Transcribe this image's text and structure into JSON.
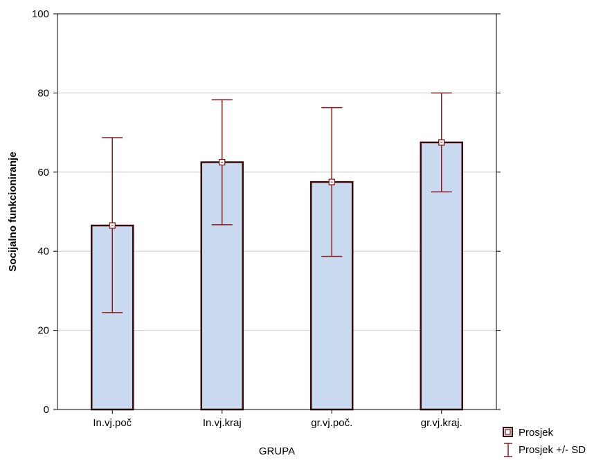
{
  "chart_data": {
    "type": "bar",
    "categories": [
      "In.vj.poč",
      "In.vj.kraj",
      "gr.vj.poč.",
      "gr.vj.kraj."
    ],
    "series": [
      {
        "values": [
          46.5,
          62.5,
          57.5,
          67.5
        ]
      }
    ],
    "error_bars": {
      "lower": [
        24.5,
        46.7,
        38.7,
        55.0
      ],
      "upper": [
        68.7,
        78.3,
        76.3,
        80.0
      ]
    },
    "xlabel": "GRUPA",
    "ylabel": "Socijalno funkcioniranje",
    "ylim": [
      0,
      100
    ],
    "yticks": [
      0,
      20,
      40,
      60,
      80,
      100
    ],
    "yticks_labels": [
      "0",
      "20",
      "40",
      "60",
      "80",
      "100"
    ],
    "grid": true,
    "legend": {
      "placement": "bottom-right",
      "entries": [
        "Prosjek",
        "Prosjek +/- SD"
      ]
    },
    "colors": {
      "bar_fill": "#c8d9f0",
      "bar_edge": "#3a0808",
      "error_bar": "#8b1a1a",
      "mean_marker": "#8b1a1a",
      "grid": "#cccccc"
    }
  }
}
